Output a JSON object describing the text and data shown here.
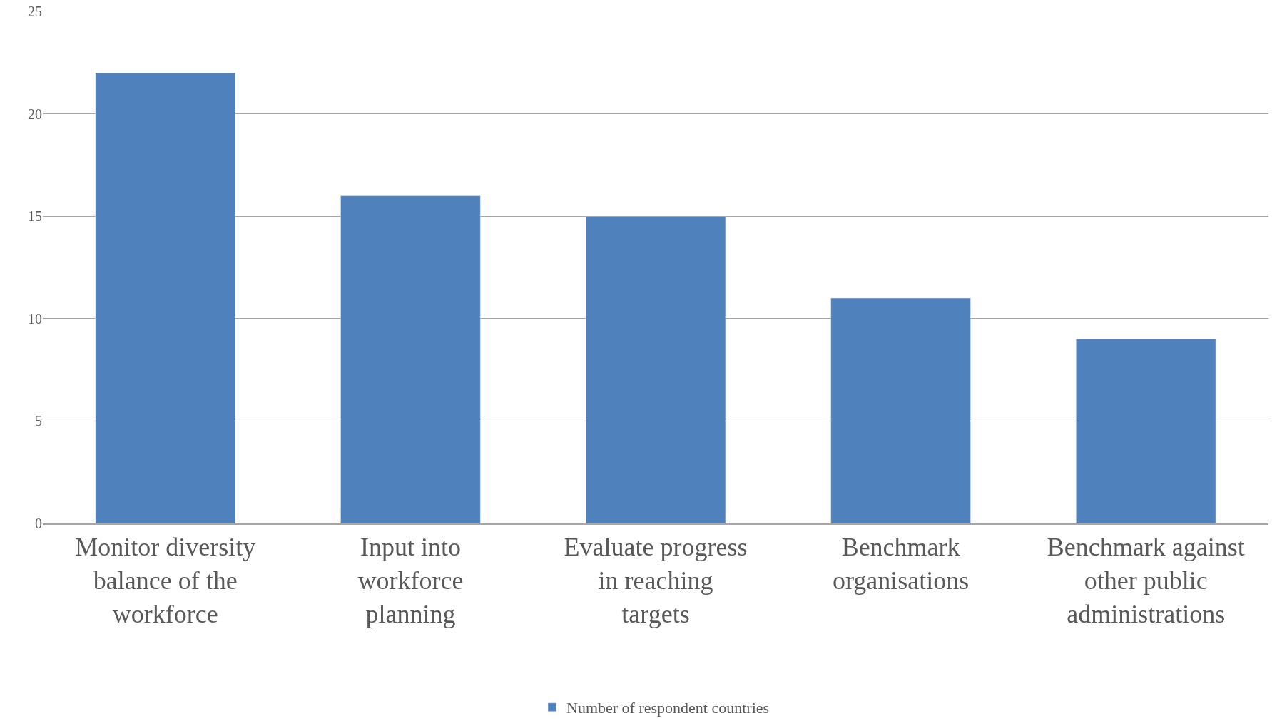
{
  "chart_data": {
    "type": "bar",
    "categories": [
      "Monitor diversity balance of the workforce",
      "Input into workforce planning",
      "Evaluate progress in reaching targets",
      "Benchmark organisations",
      "Benchmark against other public administrations"
    ],
    "series": [
      {
        "name": "Number of respondent countries",
        "color": "#4f81bd",
        "values": [
          22,
          16,
          15,
          11,
          9
        ]
      }
    ],
    "ylim": [
      0,
      25
    ],
    "yticks": [
      0,
      5,
      10,
      15,
      20,
      25
    ],
    "grid": "y",
    "legend": "bottom"
  }
}
